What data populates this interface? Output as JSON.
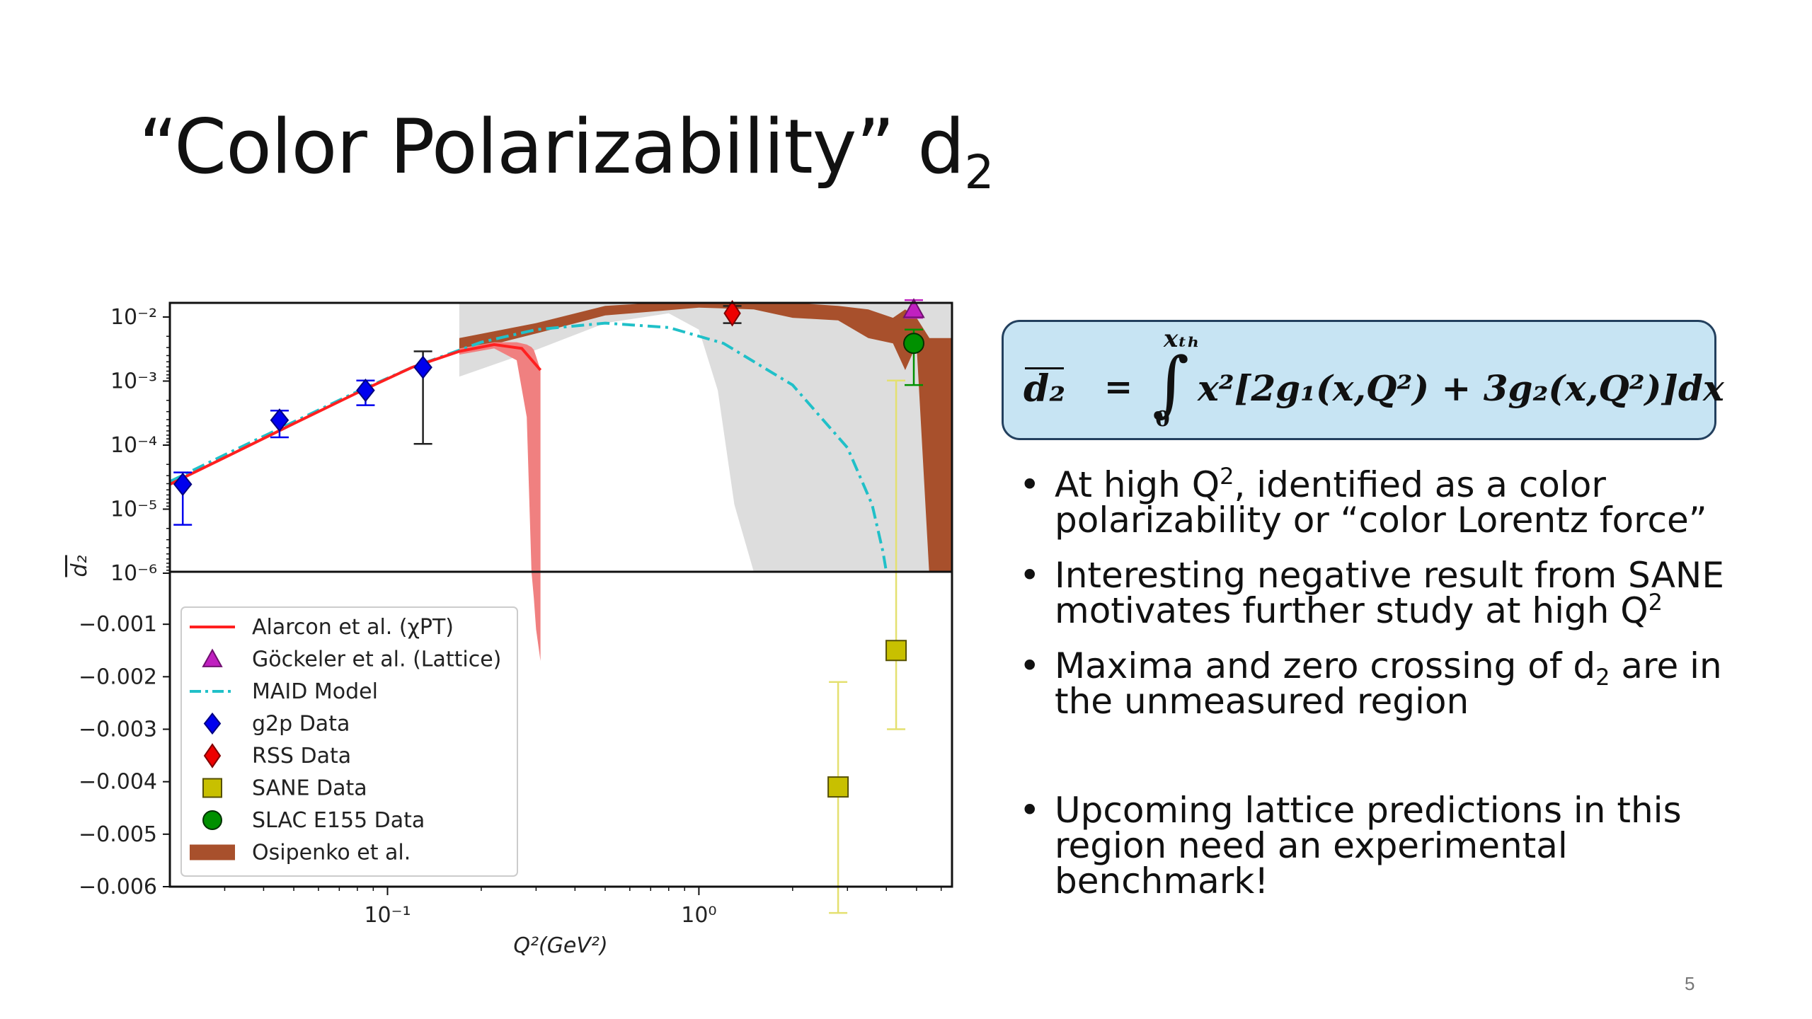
{
  "slide": {
    "title_text": "“Color Polarizability” d",
    "title_sub": "2",
    "page_number": "5"
  },
  "equation": {
    "lhs": "d₂",
    "equals": "=",
    "integral": "∫",
    "upper_limit": "xₜₕ",
    "lower_limit": "0",
    "integrand": "x²[2g₁(x,Q²) + 3g₂(x,Q²)]dx"
  },
  "bullets": [
    {
      "lines": [
        [
          "At high Q",
          "2",
          ", identified as a color"
        ],
        [
          "polarizability or “color Lorentz force”"
        ]
      ]
    },
    {
      "lines": [
        [
          "Interesting negative result from SANE"
        ],
        [
          "motivates further study at high Q",
          "2",
          ""
        ]
      ]
    },
    {
      "lines": [
        [
          "Maxima and zero crossing of d",
          "2",
          " are in"
        ],
        [
          "the unmeasured region"
        ]
      ]
    },
    {
      "lines": [
        [
          "Upcoming lattice predictions in this"
        ],
        [
          "region need an experimental"
        ],
        [
          "benchmark!"
        ]
      ]
    }
  ],
  "colors": {
    "alarcon": "#ff2020",
    "alarcon_band": "#f08080",
    "maid": "#20c0c8",
    "g2p": "#0000ee",
    "rss": "#ee0000",
    "sane": "#c8c000",
    "slac": "#009000",
    "gockeler": "#c020c0",
    "osipenko": "#a8502c",
    "lattice_band": "#dddddd"
  },
  "chart_data": {
    "type": "scatter",
    "xlabel": "Q²(GeV²)",
    "ylabel": "d₂",
    "x_scale": "log",
    "xlim": [
      0.02,
      6.5
    ],
    "x_ticks": [
      "10⁻¹",
      "10⁰"
    ],
    "top_panel": {
      "y_scale": "log",
      "ylim": [
        1e-06,
        0.01
      ],
      "y_ticks": [
        "10⁻²",
        "10⁻³",
        "10⁻⁴",
        "10⁻⁵",
        "10⁻⁶"
      ]
    },
    "bottom_panel": {
      "y_scale": "linear",
      "ylim": [
        -0.006,
        0
      ],
      "y_ticks": [
        "−0.001",
        "−0.002",
        "−0.003",
        "−0.004",
        "−0.005",
        "−0.006"
      ]
    },
    "legend": [
      {
        "key": "alarcon",
        "label": "Alarcon et al. (χPT)",
        "marker": "line"
      },
      {
        "key": "gockeler",
        "label": "Göckeler et al. (Lattice)",
        "marker": "triangle"
      },
      {
        "key": "maid",
        "label": "MAID Model",
        "marker": "dashdot"
      },
      {
        "key": "g2p",
        "label": "g2p Data",
        "marker": "thin-diamond"
      },
      {
        "key": "rss",
        "label": "RSS Data",
        "marker": "diamond"
      },
      {
        "key": "sane",
        "label": "SANE Data",
        "marker": "square"
      },
      {
        "key": "slac",
        "label": "SLAC E155 Data",
        "marker": "circle"
      },
      {
        "key": "osipenko",
        "label": "Osipenko et al.",
        "marker": "band"
      }
    ],
    "alarcon_curve": {
      "x": [
        0.02,
        0.03,
        0.05,
        0.08,
        0.12,
        0.17,
        0.22,
        0.27,
        0.31
      ],
      "y": [
        2e-05,
        5e-05,
        0.00016,
        0.00046,
        0.0011,
        0.0019,
        0.0024,
        0.0021,
        0.001
      ]
    },
    "alarcon_band": {
      "x": [
        0.17,
        0.22,
        0.26,
        0.28,
        0.29,
        0.295,
        0.3,
        0.31
      ],
      "upper": [
        0.0021,
        0.0026,
        0.0026,
        0.0024,
        0.0022,
        0.002,
        0.0016,
        0.001
      ],
      "lower": [
        0.0017,
        0.0021,
        0.0014,
        0.0002,
        1e-06,
        -0.0005,
        -0.0011,
        -0.0017
      ]
    },
    "maid_curve": {
      "x": [
        0.02,
        0.03,
        0.05,
        0.08,
        0.12,
        0.2,
        0.3,
        0.5,
        0.8,
        1.2,
        2.0,
        3.0,
        3.6,
        3.9,
        4.0
      ],
      "y": [
        2.2e-05,
        5.5e-05,
        0.00017,
        0.00048,
        0.0011,
        0.0026,
        0.004,
        0.005,
        0.0043,
        0.0025,
        0.0006,
        7e-05,
        1e-05,
        2e-06,
        1e-06
      ]
    },
    "g2p_data": {
      "x": [
        0.022,
        0.045,
        0.085,
        0.13
      ],
      "y": [
        2e-05,
        0.00018,
        0.0005,
        0.0011
      ],
      "err_low": [
        5e-06,
        0.0001,
        0.0003,
        8e-05
      ],
      "err_high": [
        3e-05,
        0.00025,
        0.0007,
        0.0019
      ]
    },
    "rss_data": {
      "x": [
        1.28
      ],
      "y": [
        0.007
      ],
      "err_low": [
        0.005
      ],
      "err_high": [
        0.009
      ]
    },
    "sane_data": {
      "x": [
        2.8,
        4.3
      ],
      "y": [
        -0.0041,
        -0.0015
      ],
      "err_low": [
        -0.0065,
        -0.003
      ],
      "err_high": [
        -0.0021,
        0.0007
      ]
    },
    "gockeler_data": {
      "x": [
        4.9
      ],
      "y": [
        0.008
      ],
      "err_low": [
        0.006
      ],
      "err_high": [
        0.011
      ]
    },
    "slac_data": {
      "x": [
        4.9
      ],
      "y": [
        0.0025
      ],
      "err_low": [
        0.0006
      ],
      "err_high": [
        0.004
      ]
    },
    "osipenko_band": {
      "x": [
        0.17,
        0.3,
        0.5,
        1.0,
        1.5,
        2.0,
        2.8,
        3.5,
        4.2,
        4.6,
        5.0,
        5.5,
        6.5
      ],
      "upper": [
        0.003,
        0.005,
        0.009,
        0.011,
        0.011,
        0.01,
        0.009,
        0.008,
        0.006,
        0.008,
        0.006,
        0.003,
        0.003
      ],
      "lower": [
        0.0018,
        0.0035,
        0.0065,
        0.0085,
        0.008,
        0.006,
        0.0055,
        0.003,
        0.0025,
        0.001,
        0.0024,
        -0.0001,
        -0.0001
      ]
    },
    "lattice_band": {
      "x": [
        0.17,
        0.3,
        0.5,
        0.8,
        1.0,
        1.15,
        1.3,
        1.5,
        2.0,
        3.0,
        4.0,
        5.0,
        6.5
      ],
      "upper": [
        0.01,
        0.01,
        0.01,
        0.01,
        0.01,
        0.01,
        0.01,
        0.01,
        0.01,
        0.01,
        0.01,
        0.01,
        0.01
      ],
      "lower": [
        0.0008,
        0.002,
        0.005,
        0.007,
        0.004,
        0.0005,
        1e-05,
        1e-06,
        1e-06,
        1e-06,
        1e-06,
        1e-06,
        1e-06
      ]
    }
  }
}
